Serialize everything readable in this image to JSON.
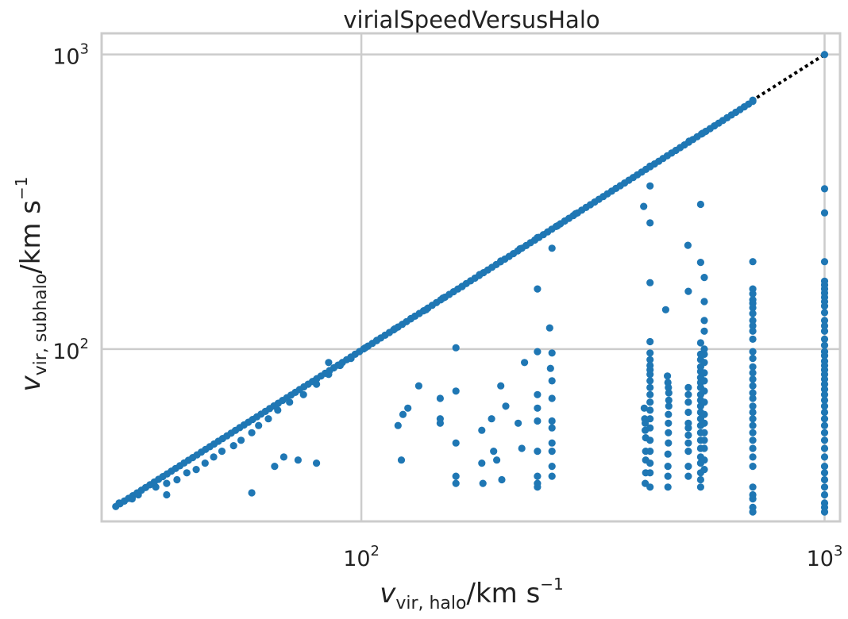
{
  "chart_data": {
    "type": "scatter",
    "title": "virialSpeedVersusHalo",
    "xlabel": {
      "symbol": "v",
      "subscript": "vir, halo",
      "unit": "/km s",
      "exponent": "−1"
    },
    "ylabel": {
      "symbol": "v",
      "subscript": "vir, subhalo",
      "unit": "/km s",
      "exponent": "−1"
    },
    "xscale": "log",
    "yscale": "log",
    "xlim": [
      27.5,
      1080
    ],
    "ylim": [
      26,
      1180
    ],
    "grid": true,
    "legend": "none",
    "x_ticks": [
      {
        "base": "10",
        "exponent": "2",
        "value": 100
      },
      {
        "base": "10",
        "exponent": "3",
        "value": 1000
      }
    ],
    "y_ticks": [
      {
        "base": "10",
        "exponent": "2",
        "value": 100
      },
      {
        "base": "10",
        "exponent": "3",
        "value": 1000
      }
    ],
    "reference_line": {
      "style": "dotted",
      "color": "#000000",
      "x": [
        30,
        1000
      ],
      "y": [
        30,
        1000
      ]
    },
    "series": [
      {
        "color": "#1f77b4",
        "diagonal_x_range": [
          29.5,
          700
        ],
        "points": [
          [
            30,
            30
          ],
          [
            32,
            31
          ],
          [
            33,
            32
          ],
          [
            36,
            34
          ],
          [
            38,
            35
          ],
          [
            40,
            36
          ],
          [
            42,
            38
          ],
          [
            44,
            39
          ],
          [
            46,
            41
          ],
          [
            48,
            43
          ],
          [
            50,
            45
          ],
          [
            53,
            47
          ],
          [
            55,
            49
          ],
          [
            58,
            52
          ],
          [
            60,
            55
          ],
          [
            63,
            58
          ],
          [
            66,
            62
          ],
          [
            70,
            66
          ],
          [
            75,
            70
          ],
          [
            80,
            76
          ],
          [
            85,
            82
          ],
          [
            90,
            88
          ],
          [
            95,
            93
          ],
          [
            102,
            101
          ],
          [
            108,
            107
          ],
          [
            118,
            117
          ],
          [
            128,
            127
          ],
          [
            138,
            136
          ],
          [
            150,
            149
          ],
          [
            165,
            163
          ],
          [
            180,
            179
          ],
          [
            200,
            199
          ],
          [
            220,
            219
          ],
          [
            240,
            239
          ],
          [
            265,
            262
          ],
          [
            290,
            288
          ],
          [
            420,
            418
          ],
          [
            510,
            508
          ],
          [
            545,
            540
          ],
          [
            700,
            700
          ],
          [
            1000,
            1000
          ],
          [
            38,
            32
          ],
          [
            58,
            32.5
          ],
          [
            65,
            40
          ],
          [
            68,
            43
          ],
          [
            73,
            42
          ],
          [
            85,
            90
          ],
          [
            80,
            41
          ],
          [
            120,
            55
          ],
          [
            123,
            60
          ],
          [
            126,
            63
          ],
          [
            122,
            42
          ],
          [
            133,
            75
          ],
          [
            148,
            68
          ],
          [
            148,
            58
          ],
          [
            148,
            56
          ],
          [
            160,
            101
          ],
          [
            160,
            72
          ],
          [
            160,
            48
          ],
          [
            160,
            37
          ],
          [
            160,
            35
          ],
          [
            182,
            53
          ],
          [
            182,
            41
          ],
          [
            183,
            35
          ],
          [
            191,
            58
          ],
          [
            193,
            45
          ],
          [
            196,
            42
          ],
          [
            200,
            75
          ],
          [
            201,
            36
          ],
          [
            205,
            64
          ],
          [
            218,
            56
          ],
          [
            222,
            46
          ],
          [
            225,
            90
          ],
          [
            240,
            160
          ],
          [
            240,
            98
          ],
          [
            240,
            70
          ],
          [
            240,
            63
          ],
          [
            240,
            57
          ],
          [
            240,
            45
          ],
          [
            240,
            37
          ],
          [
            240,
            35
          ],
          [
            240,
            34
          ],
          [
            255,
            118
          ],
          [
            258,
            97
          ],
          [
            256,
            86
          ],
          [
            258,
            78
          ],
          [
            258,
            68
          ],
          [
            258,
            57
          ],
          [
            258,
            54
          ],
          [
            258,
            48
          ],
          [
            258,
            45
          ],
          [
            258,
            40
          ],
          [
            258,
            37
          ],
          [
            258,
            220
          ],
          [
            407,
            305
          ],
          [
            408,
            63
          ],
          [
            409,
            58
          ],
          [
            410,
            56
          ],
          [
            410,
            53
          ],
          [
            411,
            50
          ],
          [
            411,
            45
          ],
          [
            411,
            42
          ],
          [
            411,
            38
          ],
          [
            410,
            35
          ],
          [
            420,
            358
          ],
          [
            420,
            268
          ],
          [
            420,
            168
          ],
          [
            420,
            106
          ],
          [
            420,
            97
          ],
          [
            420,
            92
          ],
          [
            420,
            88
          ],
          [
            420,
            85
          ],
          [
            420,
            82
          ],
          [
            420,
            78
          ],
          [
            420,
            74
          ],
          [
            420,
            70
          ],
          [
            420,
            66
          ],
          [
            420,
            62
          ],
          [
            420,
            58
          ],
          [
            420,
            54
          ],
          [
            420,
            49
          ],
          [
            420,
            45
          ],
          [
            420,
            41
          ],
          [
            420,
            38
          ],
          [
            420,
            34
          ],
          [
            454,
            136
          ],
          [
            458,
            81
          ],
          [
            459,
            77
          ],
          [
            460,
            74
          ],
          [
            461,
            71
          ],
          [
            461,
            67
          ],
          [
            461,
            64
          ],
          [
            460,
            60
          ],
          [
            460,
            56
          ],
          [
            460,
            52
          ],
          [
            460,
            48
          ],
          [
            459,
            44
          ],
          [
            459,
            40
          ],
          [
            459,
            37
          ],
          [
            459,
            34
          ],
          [
            507,
            225
          ],
          [
            508,
            157
          ],
          [
            508,
            74
          ],
          [
            508,
            70
          ],
          [
            508,
            66
          ],
          [
            508,
            61
          ],
          [
            508,
            56
          ],
          [
            508,
            54
          ],
          [
            508,
            51
          ],
          [
            508,
            48
          ],
          [
            508,
            45
          ],
          [
            508,
            40
          ],
          [
            508,
            37
          ],
          [
            540,
            310
          ],
          [
            540,
            197
          ],
          [
            540,
            105
          ],
          [
            540,
            96
          ],
          [
            540,
            92
          ],
          [
            540,
            87
          ],
          [
            540,
            84
          ],
          [
            540,
            80
          ],
          [
            540,
            77
          ],
          [
            540,
            74
          ],
          [
            540,
            70
          ],
          [
            540,
            67
          ],
          [
            540,
            64
          ],
          [
            540,
            61
          ],
          [
            540,
            58
          ],
          [
            540,
            55
          ],
          [
            540,
            52
          ],
          [
            540,
            49
          ],
          [
            540,
            46
          ],
          [
            540,
            43
          ],
          [
            540,
            41
          ],
          [
            540,
            38
          ],
          [
            540,
            36
          ],
          [
            540,
            34
          ],
          [
            550,
            175
          ],
          [
            550,
            145
          ],
          [
            550,
            125
          ],
          [
            550,
            115
          ],
          [
            550,
            100
          ],
          [
            550,
            96
          ],
          [
            550,
            90
          ],
          [
            550,
            83
          ],
          [
            550,
            78
          ],
          [
            550,
            72
          ],
          [
            550,
            66
          ],
          [
            550,
            60
          ],
          [
            550,
            56
          ],
          [
            550,
            52
          ],
          [
            550,
            49
          ],
          [
            550,
            46
          ],
          [
            550,
            42
          ],
          [
            550,
            39
          ],
          [
            700,
            198
          ],
          [
            700,
            160
          ],
          [
            700,
            154
          ],
          [
            700,
            147
          ],
          [
            700,
            143
          ],
          [
            700,
            138
          ],
          [
            700,
            132
          ],
          [
            700,
            125
          ],
          [
            700,
            120
          ],
          [
            700,
            115
          ],
          [
            700,
            108
          ],
          [
            700,
            98
          ],
          [
            700,
            93
          ],
          [
            700,
            87
          ],
          [
            700,
            83
          ],
          [
            700,
            79
          ],
          [
            700,
            75
          ],
          [
            700,
            71
          ],
          [
            700,
            68
          ],
          [
            700,
            64
          ],
          [
            700,
            61
          ],
          [
            700,
            58
          ],
          [
            700,
            55
          ],
          [
            700,
            52
          ],
          [
            700,
            49
          ],
          [
            700,
            46
          ],
          [
            700,
            43
          ],
          [
            700,
            40
          ],
          [
            700,
            34
          ],
          [
            700,
            32
          ],
          [
            700,
            31
          ],
          [
            700,
            29
          ],
          [
            700,
            28
          ],
          [
            1000,
            350
          ],
          [
            1000,
            290
          ],
          [
            1000,
            198
          ],
          [
            1000,
            170
          ],
          [
            1000,
            165
          ],
          [
            1000,
            160
          ],
          [
            1000,
            155
          ],
          [
            1000,
            150
          ],
          [
            1000,
            145
          ],
          [
            1000,
            140
          ],
          [
            1000,
            133
          ],
          [
            1000,
            125
          ],
          [
            1000,
            120
          ],
          [
            1000,
            115
          ],
          [
            1000,
            108
          ],
          [
            1000,
            103
          ],
          [
            1000,
            98
          ],
          [
            1000,
            95
          ],
          [
            1000,
            91
          ],
          [
            1000,
            88
          ],
          [
            1000,
            85
          ],
          [
            1000,
            82
          ],
          [
            1000,
            79
          ],
          [
            1000,
            76
          ],
          [
            1000,
            73
          ],
          [
            1000,
            70
          ],
          [
            1000,
            67
          ],
          [
            1000,
            64
          ],
          [
            1000,
            61
          ],
          [
            1000,
            58
          ],
          [
            1000,
            55
          ],
          [
            1000,
            52
          ],
          [
            1000,
            49
          ],
          [
            1000,
            46
          ],
          [
            1000,
            43
          ],
          [
            1000,
            40
          ],
          [
            1000,
            38
          ],
          [
            1000,
            36
          ],
          [
            1000,
            34
          ],
          [
            1000,
            32
          ],
          [
            1000,
            30
          ],
          [
            1000,
            29
          ],
          [
            1000,
            28
          ]
        ]
      }
    ]
  }
}
